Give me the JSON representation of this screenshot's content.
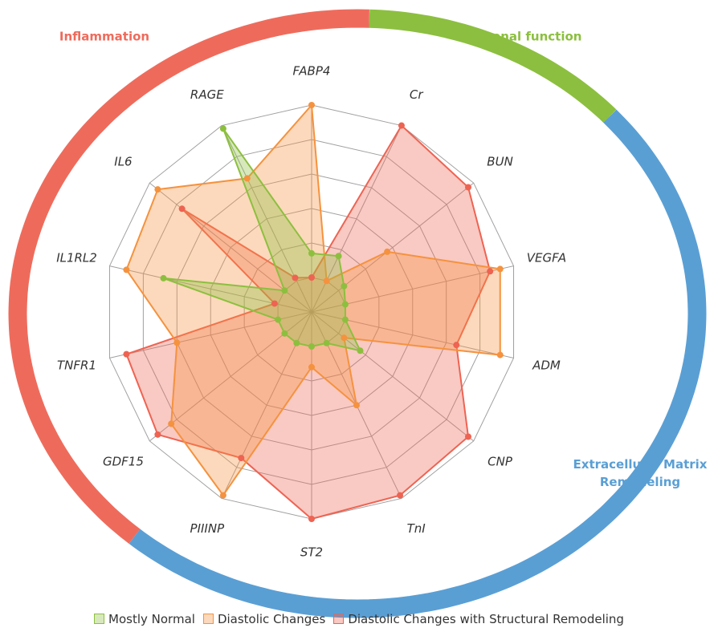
{
  "chart_data": {
    "type": "radar",
    "axes": [
      "FABP4",
      "Cr",
      "BUN",
      "VEGFA",
      "ADM",
      "CNP",
      "TnI",
      "ST2",
      "PIIINP",
      "GDF15",
      "TNFR1",
      "IL1RL2",
      "IL6",
      "RAGE"
    ],
    "rlim": [
      0,
      6
    ],
    "rticks": [
      1,
      2,
      3,
      4,
      5,
      6
    ],
    "grid": true,
    "series": [
      {
        "name": "Diastolic Changes with Structural Remodeling",
        "color": "#ee6352",
        "values": [
          1,
          6,
          5.8,
          5.3,
          4.3,
          5.8,
          5.9,
          6,
          4.7,
          5.7,
          5.5,
          1.1,
          4.8,
          1.1
        ]
      },
      {
        "name": "Diastolic Changes",
        "color": "#f5923e",
        "values": [
          6,
          1,
          2.8,
          5.6,
          5.6,
          1.2,
          3,
          1.6,
          5.9,
          5.2,
          4,
          5.5,
          5.7,
          4.3
        ]
      },
      {
        "name": "Mostly Normal",
        "color": "#8dbf3f",
        "values": [
          1.7,
          1.8,
          1.2,
          1,
          1,
          1.8,
          1,
          1,
          1,
          1,
          1,
          4.4,
          1,
          5.9
        ]
      }
    ],
    "groups": [
      {
        "name": "Inflammation",
        "color": "#ee6b5c"
      },
      {
        "name": "Renal function",
        "color": "#8cbf3f"
      },
      {
        "name": "Extracellular Matrix Remodeling",
        "color": "#5a9fd4"
      }
    ],
    "legend": "bottom"
  }
}
